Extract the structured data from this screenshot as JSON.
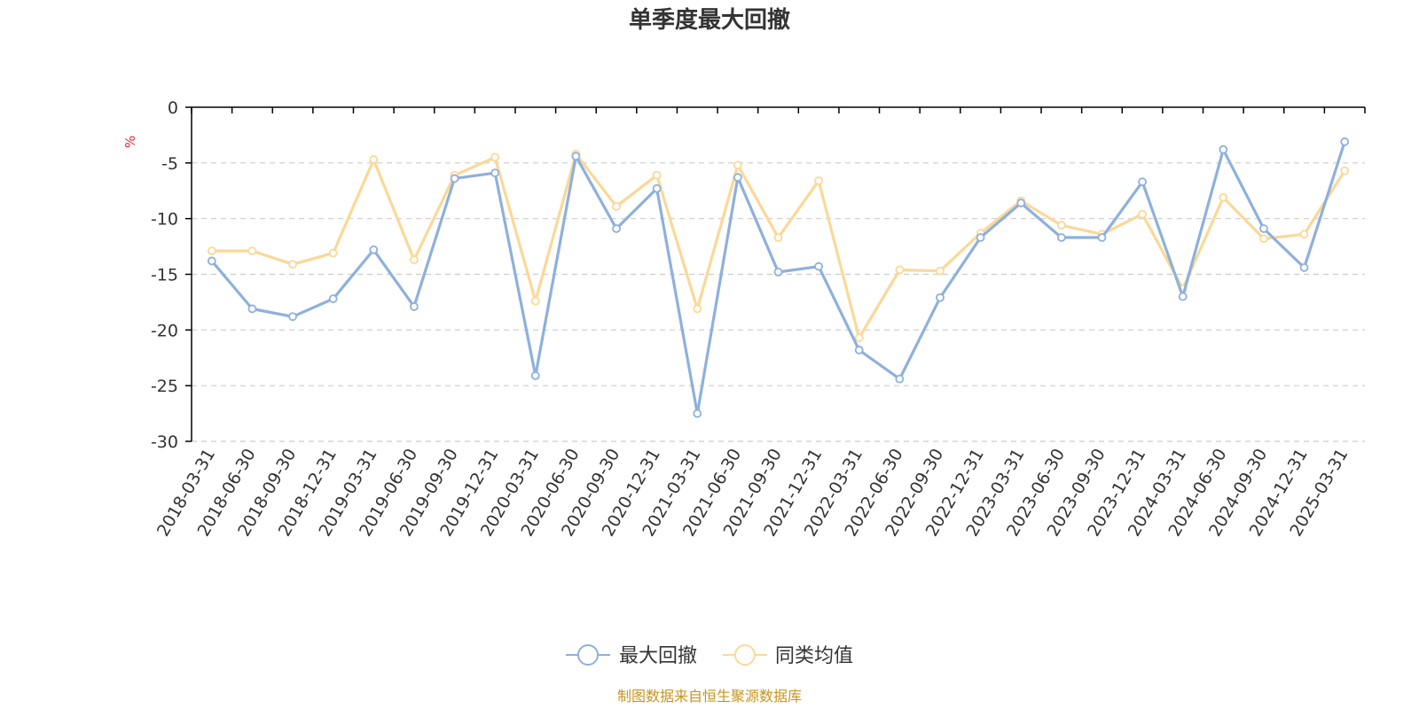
{
  "chart_data": {
    "type": "line",
    "title": "单季度最大回撤",
    "ylabel": "%",
    "xlabel": "",
    "ylim": [
      -30,
      0
    ],
    "yticks": [
      0,
      -5,
      -10,
      -15,
      -20,
      -25,
      -30
    ],
    "grid": true,
    "legend_position": "bottom-center",
    "categories": [
      "2018-03-31",
      "2018-06-30",
      "2018-09-30",
      "2018-12-31",
      "2019-03-31",
      "2019-06-30",
      "2019-09-30",
      "2019-12-31",
      "2020-03-31",
      "2020-06-30",
      "2020-09-30",
      "2020-12-31",
      "2021-03-31",
      "2021-06-30",
      "2021-09-30",
      "2021-12-31",
      "2022-03-31",
      "2022-06-30",
      "2022-09-30",
      "2022-12-31",
      "2023-03-31",
      "2023-06-30",
      "2023-09-30",
      "2023-12-31",
      "2024-03-31",
      "2024-06-30",
      "2024-09-30",
      "2024-12-31",
      "2025-03-31"
    ],
    "series": [
      {
        "name": "最大回撤",
        "color": "#8eb0dc",
        "values": [
          -13.8,
          -18.1,
          -18.8,
          -17.2,
          -12.8,
          -17.9,
          -6.4,
          -5.9,
          -24.1,
          -4.4,
          -10.9,
          -7.3,
          -27.5,
          -6.3,
          -14.8,
          -14.3,
          -21.8,
          -24.4,
          -17.1,
          -11.7,
          -8.6,
          -11.7,
          -11.7,
          -6.7,
          -17.0,
          -3.8,
          -10.9,
          -14.4,
          -3.1
        ]
      },
      {
        "name": "同类均值",
        "color": "#fbd897",
        "values": [
          -12.9,
          -12.9,
          -14.1,
          -13.1,
          -4.7,
          -13.7,
          -6.1,
          -4.5,
          -17.4,
          -4.2,
          -8.9,
          -6.1,
          -18.1,
          -5.2,
          -11.7,
          -6.6,
          -20.7,
          -14.6,
          -14.7,
          -11.3,
          -8.4,
          -10.6,
          -11.4,
          -9.6,
          -16.3,
          -8.1,
          -11.8,
          -11.4,
          -5.7
        ]
      }
    ]
  },
  "footer": {
    "source_text": "制图数据来自恒生聚源数据库"
  }
}
